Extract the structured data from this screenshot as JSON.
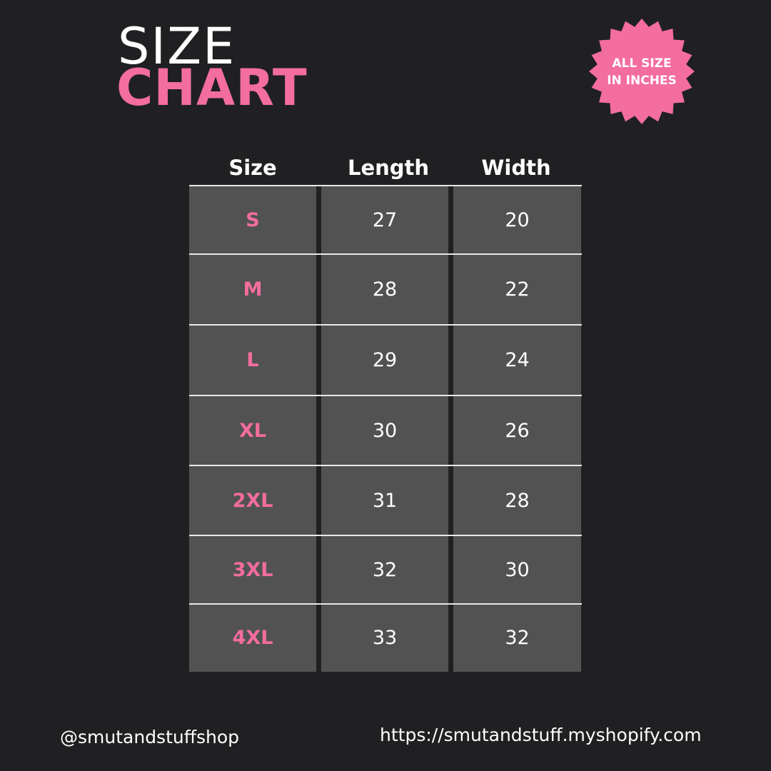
{
  "title": {
    "line1": "SIZE",
    "line2": "CHART"
  },
  "badge": {
    "line1": "ALL SIZE",
    "line2": "IN INCHES",
    "color": "#f36d9e"
  },
  "table": {
    "headers": [
      "Size",
      "Length",
      "Width"
    ],
    "rows": [
      [
        "S",
        "27",
        "20"
      ],
      [
        "M",
        "28",
        "22"
      ],
      [
        "L",
        "29",
        "24"
      ],
      [
        "XL",
        "30",
        "26"
      ],
      [
        "2XL",
        "31",
        "28"
      ],
      [
        "3XL",
        "32",
        "30"
      ],
      [
        "4XL",
        "33",
        "32"
      ]
    ]
  },
  "footer": {
    "handle": "@smutandstuffshop",
    "url": "https://smutandstuff.myshopify.com"
  },
  "colors": {
    "background": "#202022",
    "cell": "#535253",
    "accent": "#f36d9e"
  }
}
